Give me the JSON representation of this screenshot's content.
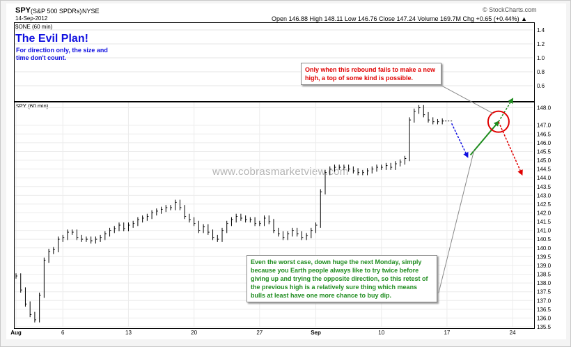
{
  "header": {
    "symbol": "SPY",
    "description": "(S&P 500 SPDRs)",
    "exchange": "NYSE",
    "date": "14-Sep-2012",
    "ohlc": "Open 146.88  High 148.11  Low 146.76  Close 147.24  Volume 169.7M  Chg +0.65 (+0.44%) ▲",
    "credit": "© StockCharts.com"
  },
  "top_panel": {
    "label": "$ONE (60 min)"
  },
  "main_panel": {
    "label": "SPY (60 min)"
  },
  "annotations": {
    "plan_title": "The Evil Plan!",
    "plan_sub": "For direction only, the size and time don't count.",
    "red_note": "Only when this rebound fails to make a new high, a top of some kind is possible.",
    "green_note": "Even the worst case, down huge the next Monday, simply because you Earth people always like to try twice before giving up and trying the opposite direction, so this retest of the previous high is a relatively sure thing which means bulls at least have one more chance to buy dip.",
    "watermark": "www.cobrasmarketview.com"
  },
  "colors": {
    "red": "#e00000",
    "green": "#1e8c1e",
    "blue": "#1010e0",
    "price": "#000000"
  },
  "chart_data": [
    {
      "type": "line",
      "title": "$ONE (60 min)",
      "ylim": [
        0.4,
        1.5
      ],
      "y_ticks": [
        1.4,
        1.2,
        1.0,
        0.8,
        0.6
      ],
      "series": []
    },
    {
      "type": "line",
      "title": "SPY (60 min)",
      "ylim": [
        135.5,
        148.3
      ],
      "y_ticks": [
        148.0,
        147.0,
        146.5,
        146.0,
        145.5,
        145.0,
        144.5,
        144.0,
        143.5,
        143.0,
        142.5,
        142.0,
        141.5,
        141.0,
        140.5,
        140.0,
        139.5,
        139.0,
        138.5,
        138.0,
        137.5,
        137.0,
        136.5,
        136.0,
        135.5
      ],
      "x_ticks": [
        "Aug",
        "6",
        "13",
        "20",
        "27",
        "Sep",
        "10",
        "17",
        "24"
      ],
      "x_tick_days": [
        1,
        6,
        13,
        20,
        27,
        33,
        40,
        47,
        54
      ],
      "x_range_days": [
        1,
        56
      ],
      "series": [
        {
          "x": [
            1,
            1.5,
            2,
            2.5,
            3,
            3.5,
            4,
            4.5,
            5,
            5.5,
            6,
            6.5,
            7,
            7.5,
            8,
            8.5,
            9,
            9.5,
            10,
            10.5,
            11,
            11.5,
            12,
            12.5,
            13,
            13.5,
            14,
            14.5,
            15,
            15.5,
            16,
            16.5,
            17,
            17.5,
            18,
            18.5,
            19,
            19.5,
            20,
            20.5,
            21,
            21.5,
            22,
            22.5,
            23,
            23.5,
            24,
            24.5,
            25,
            25.5,
            26,
            26.5,
            27,
            27.5,
            28,
            28.5,
            29,
            29.5,
            30,
            30.5,
            31,
            31.5,
            32,
            32.5,
            33,
            33.5,
            34,
            34.5,
            35,
            35.5,
            36,
            36.5,
            37,
            37.5,
            38,
            38.5,
            39,
            39.5,
            40,
            40.5,
            41,
            41.5,
            42,
            42.5,
            43,
            43.5,
            44,
            44.5,
            45,
            45.5,
            46,
            46.5
          ],
          "values": [
            138.4,
            137.6,
            136.8,
            136.2,
            135.9,
            137.3,
            139.3,
            139.8,
            139.9,
            140.5,
            140.6,
            140.9,
            140.9,
            140.6,
            140.5,
            140.5,
            140.4,
            140.5,
            140.6,
            140.8,
            141.0,
            141.1,
            141.3,
            141.1,
            141.3,
            141.4,
            141.6,
            141.7,
            141.8,
            142.0,
            142.1,
            142.2,
            142.3,
            142.3,
            142.6,
            142.3,
            141.8,
            141.6,
            141.4,
            141.0,
            141.2,
            140.9,
            140.6,
            140.5,
            141.0,
            141.4,
            141.6,
            141.8,
            141.7,
            141.6,
            141.6,
            141.4,
            141.4,
            141.7,
            141.5,
            141.0,
            140.8,
            140.6,
            140.8,
            141.0,
            140.8,
            140.6,
            140.7,
            141.0,
            141.3,
            143.2,
            144.3,
            144.5,
            144.6,
            144.6,
            144.6,
            144.5,
            144.4,
            144.3,
            144.3,
            144.4,
            144.5,
            144.6,
            144.6,
            144.7,
            144.6,
            144.8,
            144.9,
            145.1,
            147.3,
            147.8,
            148.0,
            147.6,
            147.3,
            147.2,
            147.2,
            147.24
          ]
        }
      ],
      "projection_arrows": [
        {
          "color": "blue",
          "from": [
            47.5,
            147.1
          ],
          "to": [
            49.2,
            145.2
          ],
          "dashed": true
        },
        {
          "color": "green",
          "from": [
            49.5,
            145.3
          ],
          "to": [
            52.5,
            147.2
          ],
          "dashed": false
        },
        {
          "color": "green",
          "from": [
            52.5,
            147.2
          ],
          "to": [
            54,
            148.5
          ],
          "dashed": true
        },
        {
          "color": "red",
          "from": [
            52.5,
            147.2
          ],
          "to": [
            55,
            144.2
          ],
          "dashed": true
        }
      ]
    }
  ]
}
